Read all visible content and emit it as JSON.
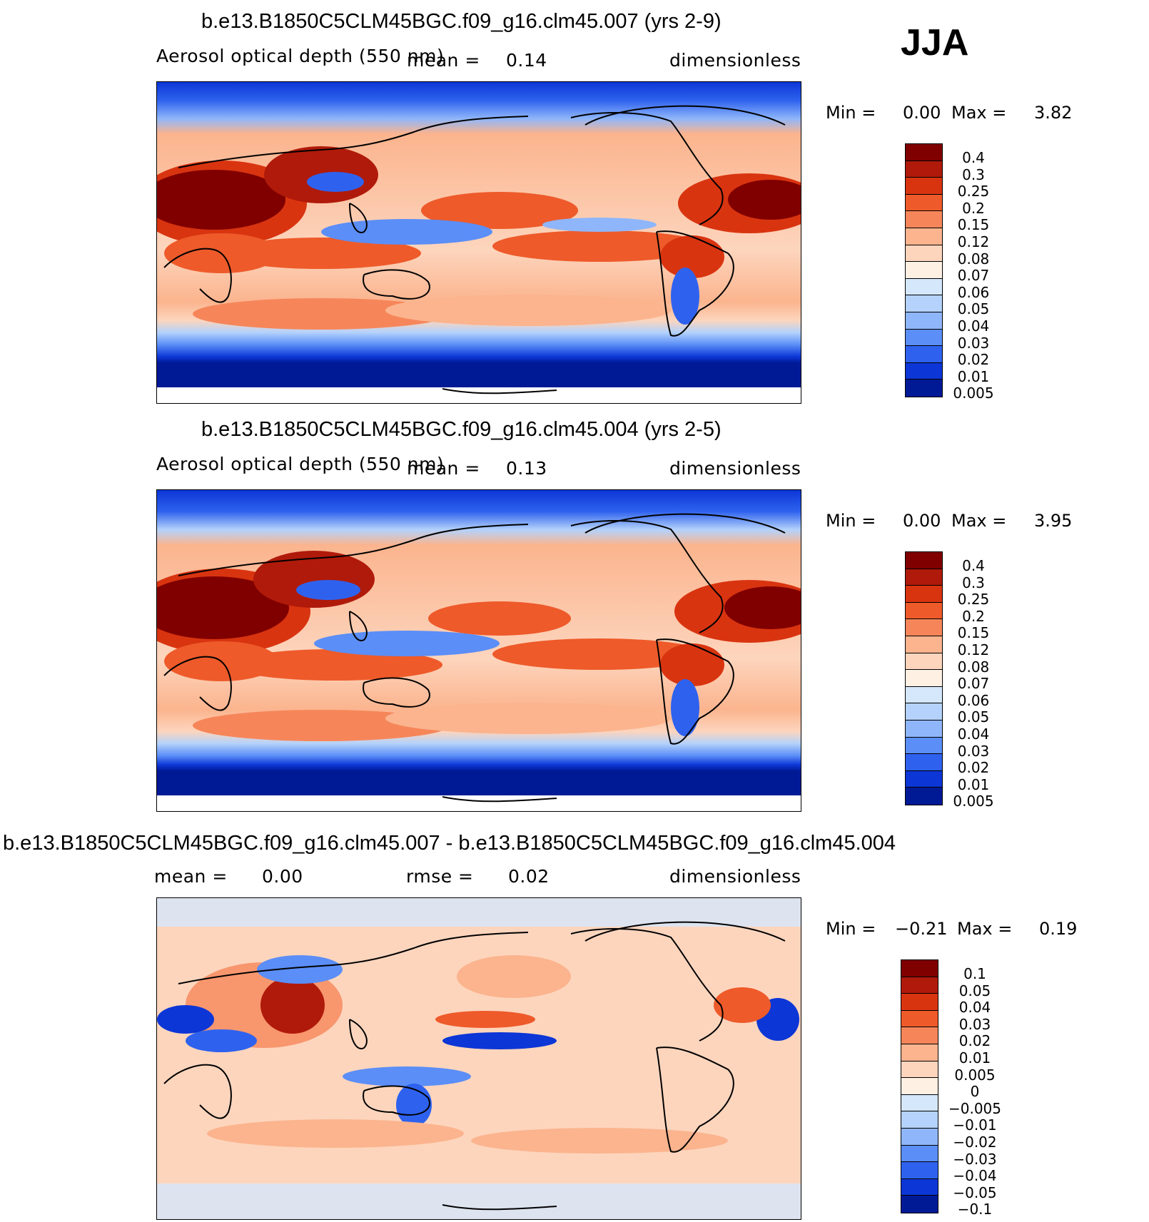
{
  "season": "JJA",
  "panels": [
    {
      "title": "b.e13.B1850C5CLM45BGC.f09_g16.clm45.007 (yrs 2-9)",
      "variable": "Aerosol optical depth (550 nm)",
      "mean_label": "mean =",
      "mean_value": "0.14",
      "units": "dimensionless",
      "min_label": "Min =",
      "min_value": "0.00",
      "max_label": "Max =",
      "max_value": "3.82",
      "levels": [
        "0.4",
        "0.3",
        "0.25",
        "0.2",
        "0.15",
        "0.12",
        "0.08",
        "0.07",
        "0.06",
        "0.05",
        "0.04",
        "0.03",
        "0.02",
        "0.01",
        "0.005"
      ]
    },
    {
      "title": "b.e13.B1850C5CLM45BGC.f09_g16.clm45.004 (yrs 2-5)",
      "variable": "Aerosol optical depth (550 nm)",
      "mean_label": "mean =",
      "mean_value": "0.13",
      "units": "dimensionless",
      "min_label": "Min =",
      "min_value": "0.00",
      "max_label": "Max =",
      "max_value": "3.95",
      "levels": [
        "0.4",
        "0.3",
        "0.25",
        "0.2",
        "0.15",
        "0.12",
        "0.08",
        "0.07",
        "0.06",
        "0.05",
        "0.04",
        "0.03",
        "0.02",
        "0.01",
        "0.005"
      ]
    },
    {
      "title": "b.e13.B1850C5CLM45BGC.f09_g16.clm45.007 - b.e13.B1850C5CLM45BGC.f09_g16.clm45.004",
      "mean_label": "mean =",
      "mean_value": "0.00",
      "rmse_label": "rmse =",
      "rmse_value": "0.02",
      "units": "dimensionless",
      "min_label": "Min =",
      "min_value": "−0.21",
      "max_label": "Max =",
      "max_value": "0.19",
      "levels": [
        "0.1",
        "0.05",
        "0.04",
        "0.03",
        "0.02",
        "0.01",
        "0.005",
        "0",
        "−0.005",
        "−0.01",
        "−0.02",
        "−0.03",
        "−0.04",
        "−0.05",
        "−0.1"
      ]
    }
  ],
  "palette": [
    "#800000",
    "#b01a0a",
    "#d93410",
    "#ee5a2a",
    "#f6865a",
    "#fbb48e",
    "#fdd5bd",
    "#fff0e4",
    "#d5e7fb",
    "#b4d2fb",
    "#8fb6fa",
    "#5b8ef7",
    "#2e62ee",
    "#0c36d6",
    "#001a96"
  ]
}
